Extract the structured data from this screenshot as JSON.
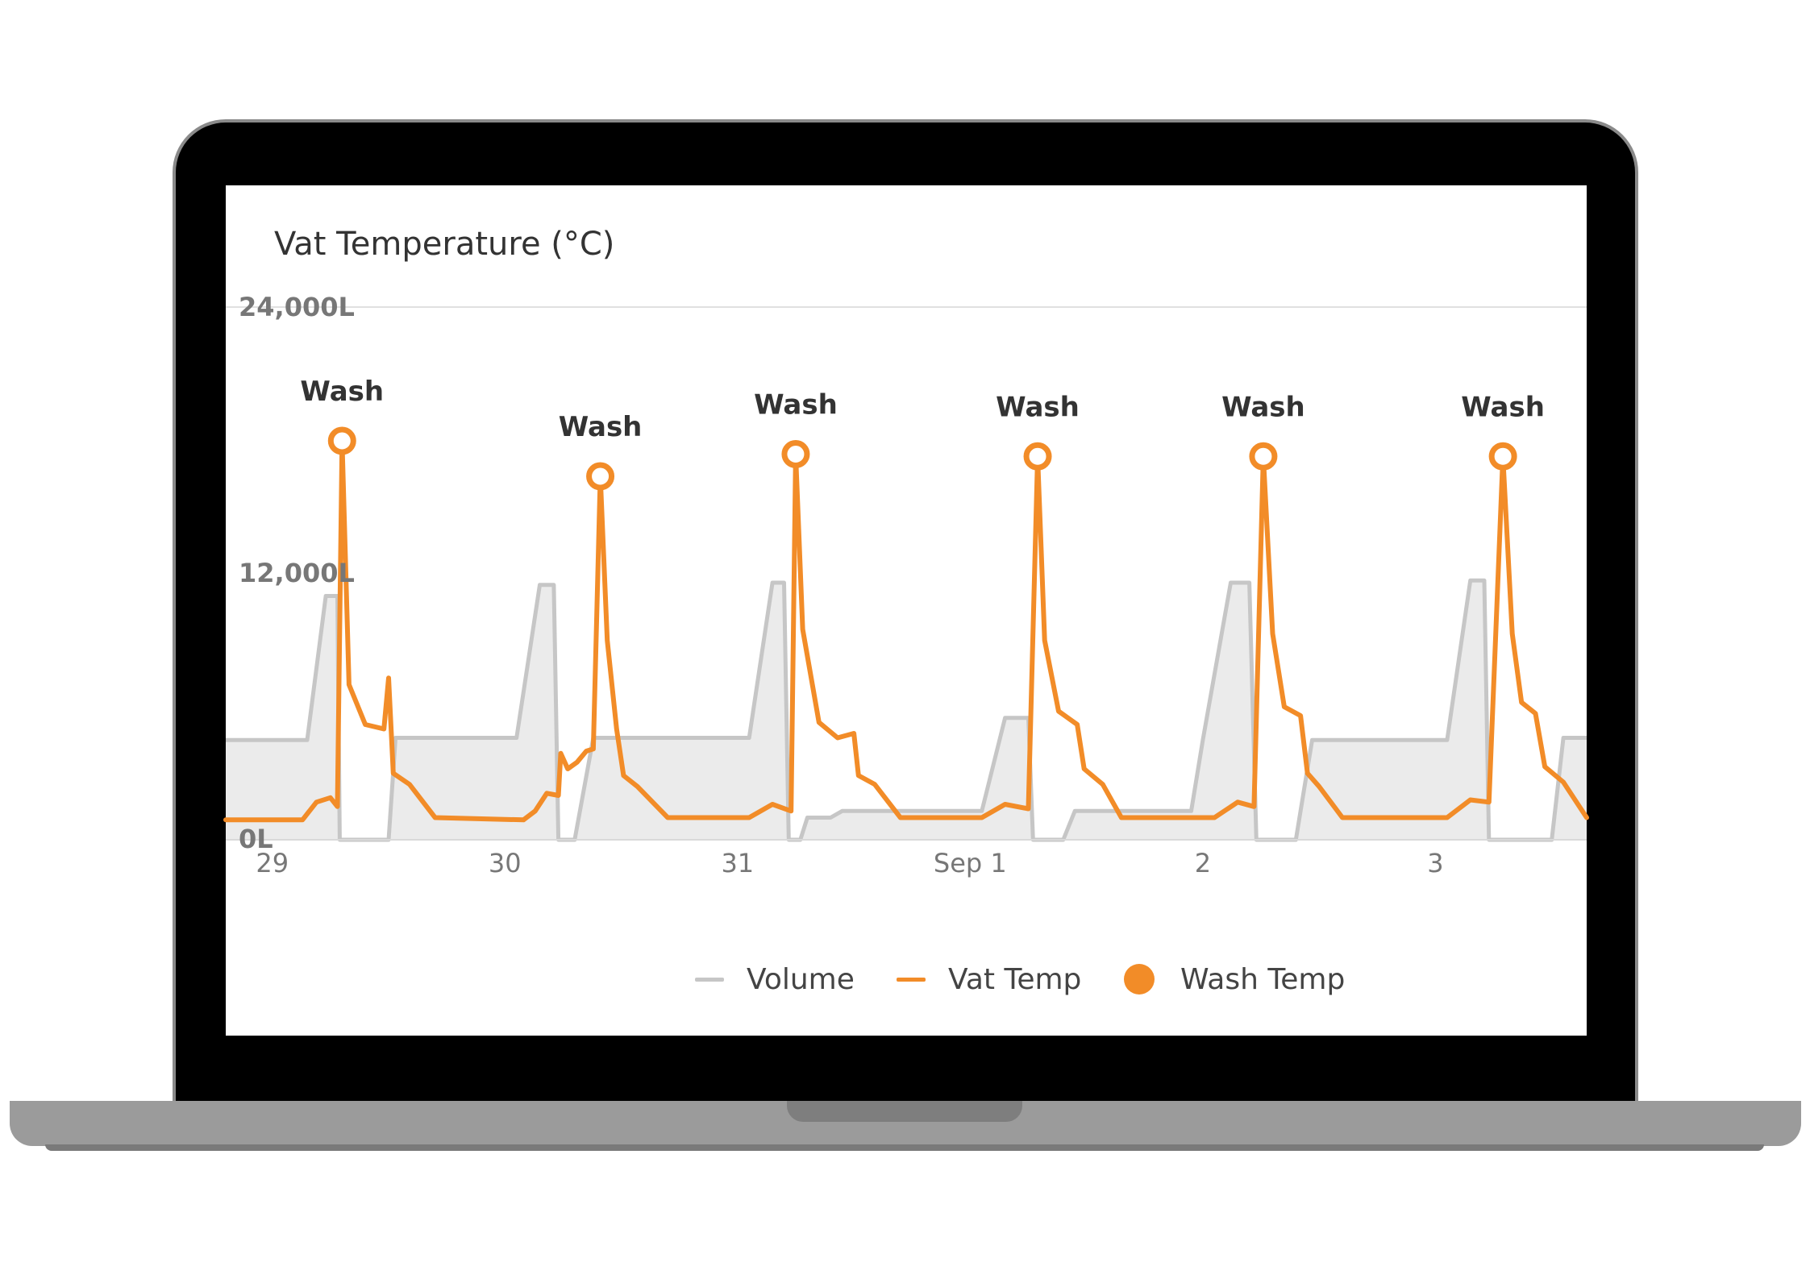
{
  "card": {
    "title": "Vat Temperature (°C)"
  },
  "legend": [
    {
      "label": "Volume",
      "color": "#c6c6c6",
      "shape": "line"
    },
    {
      "label": "Vat Temp",
      "color": "#f28c28",
      "shape": "line"
    },
    {
      "label": "Wash Temp",
      "color": "#f28c28",
      "shape": "dot"
    }
  ],
  "chart_data": {
    "type": "line",
    "title": "Vat Temperature (°C)",
    "xlabel": "",
    "ylabel": "",
    "x_ticks": [
      "29",
      "30",
      "31",
      "Sep 1",
      "2",
      "3"
    ],
    "x_range": [
      28.35,
      34.2
    ],
    "y_ticks": [
      "24,000L",
      "12,000L",
      "0L"
    ],
    "ylim": [
      0,
      24000
    ],
    "grid": false,
    "legend_position": "bottom",
    "series": [
      {
        "name": "Volume",
        "style": "area",
        "color": "#c6c6c6",
        "fill": "#ebebeb",
        "points": [
          [
            28.35,
            4500
          ],
          [
            28.7,
            4500
          ],
          [
            28.78,
            11000
          ],
          [
            28.83,
            11000
          ],
          [
            28.84,
            0
          ],
          [
            28.86,
            0
          ],
          [
            29.05,
            0
          ],
          [
            29.08,
            4600
          ],
          [
            29.6,
            4600
          ],
          [
            29.7,
            11500
          ],
          [
            29.76,
            11500
          ],
          [
            29.78,
            0
          ],
          [
            29.85,
            0
          ],
          [
            29.93,
            4600
          ],
          [
            30.6,
            4600
          ],
          [
            30.7,
            11600
          ],
          [
            30.75,
            11600
          ],
          [
            30.77,
            0
          ],
          [
            30.82,
            0
          ],
          [
            30.85,
            1000
          ],
          [
            30.95,
            1000
          ],
          [
            31.0,
            1300
          ],
          [
            31.6,
            1300
          ],
          [
            31.7,
            5500
          ],
          [
            31.8,
            5500
          ],
          [
            31.82,
            0
          ],
          [
            31.95,
            0
          ],
          [
            32.0,
            1300
          ],
          [
            32.5,
            1300
          ],
          [
            32.55,
            4500
          ],
          [
            32.67,
            11600
          ],
          [
            32.75,
            11600
          ],
          [
            32.78,
            0
          ],
          [
            32.95,
            0
          ],
          [
            33.02,
            4500
          ],
          [
            33.6,
            4500
          ],
          [
            33.7,
            11700
          ],
          [
            33.76,
            11700
          ],
          [
            33.78,
            0
          ],
          [
            34.05,
            0
          ],
          [
            34.1,
            4600
          ],
          [
            34.2,
            4600
          ]
        ]
      },
      {
        "name": "Vat Temp",
        "style": "line",
        "color": "#f28c28",
        "points": [
          [
            28.35,
            900
          ],
          [
            28.68,
            900
          ],
          [
            28.74,
            1700
          ],
          [
            28.8,
            1900
          ],
          [
            28.83,
            1500
          ],
          [
            28.85,
            18000
          ],
          [
            28.88,
            7000
          ],
          [
            28.95,
            5200
          ],
          [
            29.03,
            5000
          ],
          [
            29.05,
            7300
          ],
          [
            29.07,
            3000
          ],
          [
            29.14,
            2500
          ],
          [
            29.25,
            1000
          ],
          [
            29.63,
            900
          ],
          [
            29.68,
            1300
          ],
          [
            29.73,
            2100
          ],
          [
            29.78,
            2000
          ],
          [
            29.79,
            3900
          ],
          [
            29.82,
            3200
          ],
          [
            29.86,
            3500
          ],
          [
            29.9,
            4000
          ],
          [
            29.93,
            4100
          ],
          [
            29.96,
            16400
          ],
          [
            29.99,
            9000
          ],
          [
            30.03,
            5000
          ],
          [
            30.06,
            2900
          ],
          [
            30.12,
            2400
          ],
          [
            30.25,
            1000
          ],
          [
            30.6,
            1000
          ],
          [
            30.7,
            1600
          ],
          [
            30.78,
            1300
          ],
          [
            30.8,
            17400
          ],
          [
            30.83,
            9500
          ],
          [
            30.9,
            5300
          ],
          [
            30.98,
            4600
          ],
          [
            31.05,
            4800
          ],
          [
            31.07,
            2900
          ],
          [
            31.14,
            2500
          ],
          [
            31.25,
            1000
          ],
          [
            31.6,
            1000
          ],
          [
            31.7,
            1600
          ],
          [
            31.8,
            1400
          ],
          [
            31.84,
            17300
          ],
          [
            31.87,
            9000
          ],
          [
            31.93,
            5800
          ],
          [
            32.01,
            5200
          ],
          [
            32.04,
            3200
          ],
          [
            32.12,
            2500
          ],
          [
            32.2,
            1000
          ],
          [
            32.6,
            1000
          ],
          [
            32.7,
            1700
          ],
          [
            32.77,
            1500
          ],
          [
            32.81,
            17300
          ],
          [
            32.85,
            9300
          ],
          [
            32.9,
            6000
          ],
          [
            32.97,
            5600
          ],
          [
            33.0,
            3000
          ],
          [
            33.05,
            2400
          ],
          [
            33.15,
            1000
          ],
          [
            33.6,
            1000
          ],
          [
            33.7,
            1800
          ],
          [
            33.78,
            1700
          ],
          [
            33.84,
            17300
          ],
          [
            33.88,
            9300
          ],
          [
            33.92,
            6200
          ],
          [
            33.98,
            5700
          ],
          [
            34.02,
            3300
          ],
          [
            34.1,
            2600
          ],
          [
            34.2,
            1000
          ]
        ]
      },
      {
        "name": "Wash Temp",
        "style": "markers",
        "color": "#f28c28",
        "points": [
          [
            28.85,
            18000,
            "Wash"
          ],
          [
            29.96,
            16400,
            "Wash"
          ],
          [
            30.8,
            17400,
            "Wash"
          ],
          [
            31.84,
            17300,
            "Wash"
          ],
          [
            32.81,
            17300,
            "Wash"
          ],
          [
            33.84,
            17300,
            "Wash"
          ]
        ]
      }
    ]
  }
}
